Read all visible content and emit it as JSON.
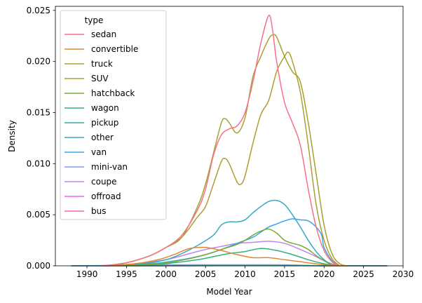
{
  "chart_data": {
    "type": "line",
    "title": "",
    "xlabel": "Model Year",
    "ylabel": "Density",
    "xlim": [
      1986,
      2030
    ],
    "ylim": [
      0,
      0.0254
    ],
    "xticks": [
      1990,
      1995,
      2000,
      2005,
      2010,
      2015,
      2020,
      2025,
      2030
    ],
    "yticks": [
      0.0,
      0.005,
      0.01,
      0.015,
      0.02,
      0.025
    ],
    "ytick_labels": [
      "0.000",
      "0.005",
      "0.010",
      "0.015",
      "0.020",
      "0.025"
    ],
    "grid": false,
    "legend": {
      "title": "type",
      "position": "top-left"
    },
    "series": [
      {
        "name": "sedan",
        "color": "#f77189",
        "points": [
          [
            1992,
            0
          ],
          [
            1995,
            0.0003
          ],
          [
            1998,
            0.001
          ],
          [
            2000,
            0.0018
          ],
          [
            2002,
            0.003
          ],
          [
            2004,
            0.0055
          ],
          [
            2005,
            0.0075
          ],
          [
            2006,
            0.0108
          ],
          [
            2007,
            0.0128
          ],
          [
            2008,
            0.0134
          ],
          [
            2009,
            0.0137
          ],
          [
            2010,
            0.015
          ],
          [
            2011,
            0.018
          ],
          [
            2012,
            0.0218
          ],
          [
            2013,
            0.0245
          ],
          [
            2013.5,
            0.023
          ],
          [
            2014,
            0.02
          ],
          [
            2015,
            0.016
          ],
          [
            2016,
            0.014
          ],
          [
            2017,
            0.0118
          ],
          [
            2018,
            0.0075
          ],
          [
            2019,
            0.0038
          ],
          [
            2020,
            0.0015
          ],
          [
            2021,
            0.0004
          ],
          [
            2022,
            0
          ]
        ]
      },
      {
        "name": "convertible",
        "color": "#dc8932",
        "points": [
          [
            1992,
            0
          ],
          [
            1996,
            0.0002
          ],
          [
            1999,
            0.0006
          ],
          [
            2001,
            0.0011
          ],
          [
            2003,
            0.0017
          ],
          [
            2005,
            0.0018
          ],
          [
            2007,
            0.0015
          ],
          [
            2009,
            0.0011
          ],
          [
            2011,
            0.0008
          ],
          [
            2013,
            0.0008
          ],
          [
            2015,
            0.0006
          ],
          [
            2017,
            0.0004
          ],
          [
            2019,
            0.0002
          ],
          [
            2021,
            5e-05
          ],
          [
            2023,
            0
          ]
        ]
      },
      {
        "name": "truck",
        "color": "#ae9d31",
        "points": [
          [
            1992,
            0
          ],
          [
            1995,
            0.0003
          ],
          [
            1998,
            0.001
          ],
          [
            2000,
            0.0018
          ],
          [
            2002,
            0.0028
          ],
          [
            2004,
            0.0048
          ],
          [
            2005,
            0.0058
          ],
          [
            2006,
            0.008
          ],
          [
            2007,
            0.0102
          ],
          [
            2007.5,
            0.0105
          ],
          [
            2008,
            0.01
          ],
          [
            2009,
            0.0082
          ],
          [
            2009.5,
            0.008
          ],
          [
            2010,
            0.0088
          ],
          [
            2011,
            0.012
          ],
          [
            2012,
            0.0148
          ],
          [
            2013,
            0.0162
          ],
          [
            2014,
            0.019
          ],
          [
            2015,
            0.0205
          ],
          [
            2015.5,
            0.0209
          ],
          [
            2016,
            0.02
          ],
          [
            2017,
            0.017
          ],
          [
            2018,
            0.0118
          ],
          [
            2019,
            0.006
          ],
          [
            2020,
            0.0025
          ],
          [
            2021,
            0.0007
          ],
          [
            2022,
            0
          ]
        ]
      },
      {
        "name": "SUV",
        "color": "#a5a22e",
        "points": [
          [
            1992,
            0
          ],
          [
            1995,
            0.0003
          ],
          [
            1998,
            0.001
          ],
          [
            2000,
            0.0018
          ],
          [
            2002,
            0.0028
          ],
          [
            2004,
            0.0058
          ],
          [
            2005,
            0.008
          ],
          [
            2006,
            0.011
          ],
          [
            2007,
            0.014
          ],
          [
            2007.5,
            0.0144
          ],
          [
            2008,
            0.014
          ],
          [
            2009,
            0.013
          ],
          [
            2010,
            0.0145
          ],
          [
            2011,
            0.0185
          ],
          [
            2012,
            0.0205
          ],
          [
            2013,
            0.0222
          ],
          [
            2013.5,
            0.0226
          ],
          [
            2014,
            0.0224
          ],
          [
            2015,
            0.0205
          ],
          [
            2016,
            0.019
          ],
          [
            2017,
            0.018
          ],
          [
            2018,
            0.014
          ],
          [
            2019,
            0.009
          ],
          [
            2020,
            0.004
          ],
          [
            2021,
            0.0012
          ],
          [
            2022,
            0.0002
          ],
          [
            2023,
            0
          ]
        ]
      },
      {
        "name": "hatchback",
        "color": "#77ab31",
        "points": [
          [
            1992,
            0
          ],
          [
            1997,
            0.0001
          ],
          [
            2000,
            0.0003
          ],
          [
            2003,
            0.0007
          ],
          [
            2005,
            0.0011
          ],
          [
            2007,
            0.0016
          ],
          [
            2009,
            0.0021
          ],
          [
            2010,
            0.0025
          ],
          [
            2011,
            0.003
          ],
          [
            2012,
            0.0034
          ],
          [
            2013,
            0.0036
          ],
          [
            2014,
            0.0032
          ],
          [
            2015,
            0.0025
          ],
          [
            2016,
            0.0022
          ],
          [
            2017,
            0.002
          ],
          [
            2018,
            0.0016
          ],
          [
            2019,
            0.001
          ],
          [
            2020,
            0.0005
          ],
          [
            2021,
            0.0001
          ],
          [
            2022,
            0
          ]
        ]
      },
      {
        "name": "wagon",
        "color": "#33b07a",
        "points": [
          [
            1992,
            0
          ],
          [
            1998,
            0.0001
          ],
          [
            2001,
            0.0003
          ],
          [
            2004,
            0.0006
          ],
          [
            2006,
            0.0009
          ],
          [
            2008,
            0.0012
          ],
          [
            2010,
            0.0014
          ],
          [
            2012,
            0.0017
          ],
          [
            2014,
            0.0015
          ],
          [
            2016,
            0.0011
          ],
          [
            2018,
            0.0006
          ],
          [
            2020,
            0.0002
          ],
          [
            2022,
            0
          ]
        ]
      },
      {
        "name": "pickup",
        "color": "#36ada4",
        "points": [
          [
            1988,
            0
          ],
          [
            2000,
            0
          ],
          [
            2010,
            2e-05
          ],
          [
            2020,
            1e-05
          ],
          [
            2028,
            0
          ]
        ]
      },
      {
        "name": "other",
        "color": "#38a9c5",
        "points": [
          [
            1992,
            0
          ],
          [
            1997,
            0.0002
          ],
          [
            2000,
            0.0006
          ],
          [
            2002,
            0.0012
          ],
          [
            2004,
            0.002
          ],
          [
            2006,
            0.003
          ],
          [
            2007,
            0.004
          ],
          [
            2008,
            0.0043
          ],
          [
            2009,
            0.0043
          ],
          [
            2010,
            0.0045
          ],
          [
            2011,
            0.0052
          ],
          [
            2012,
            0.0058
          ],
          [
            2013,
            0.0063
          ],
          [
            2014,
            0.0064
          ],
          [
            2015,
            0.006
          ],
          [
            2016,
            0.005
          ],
          [
            2017,
            0.0038
          ],
          [
            2018,
            0.0025
          ],
          [
            2019,
            0.0014
          ],
          [
            2020,
            0.0006
          ],
          [
            2021,
            0.0001
          ],
          [
            2022,
            0
          ]
        ]
      },
      {
        "name": "van",
        "color": "#3ba3ec",
        "points": [
          [
            1992,
            0
          ],
          [
            1998,
            0.0002
          ],
          [
            2002,
            0.0006
          ],
          [
            2005,
            0.0011
          ],
          [
            2007,
            0.0016
          ],
          [
            2009,
            0.0022
          ],
          [
            2011,
            0.0028
          ],
          [
            2012,
            0.0033
          ],
          [
            2013,
            0.0038
          ],
          [
            2014,
            0.0041
          ],
          [
            2015,
            0.0044
          ],
          [
            2016,
            0.0046
          ],
          [
            2017,
            0.0045
          ],
          [
            2018,
            0.0044
          ],
          [
            2019,
            0.0038
          ],
          [
            2019.7,
            0.003
          ],
          [
            2020,
            0.0018
          ],
          [
            2021,
            0.0005
          ],
          [
            2022,
            0
          ]
        ]
      },
      {
        "name": "mini-van",
        "color": "#8197f4",
        "points": [
          [
            1988,
            0
          ],
          [
            2000,
            0.0001
          ],
          [
            2010,
            0.0001
          ],
          [
            2015,
            0.0001
          ],
          [
            2020,
            0
          ],
          [
            2028,
            0
          ]
        ]
      },
      {
        "name": "coupe",
        "color": "#c381f4",
        "points": [
          [
            1992,
            0
          ],
          [
            1996,
            0.0002
          ],
          [
            2000,
            0.0006
          ],
          [
            2003,
            0.0012
          ],
          [
            2005,
            0.0016
          ],
          [
            2007,
            0.0019
          ],
          [
            2009,
            0.0022
          ],
          [
            2011,
            0.0023
          ],
          [
            2013,
            0.0024
          ],
          [
            2015,
            0.0022
          ],
          [
            2017,
            0.0016
          ],
          [
            2019,
            0.0009
          ],
          [
            2020,
            0.0005
          ],
          [
            2021,
            0.0002
          ],
          [
            2022,
            0
          ]
        ]
      },
      {
        "name": "offroad",
        "color": "#f45deb",
        "points": [
          [
            1988,
            0
          ],
          [
            2000,
            3e-05
          ],
          [
            2010,
            4e-05
          ],
          [
            2020,
            2e-05
          ],
          [
            2028,
            0
          ]
        ]
      },
      {
        "name": "bus",
        "color": "#f565b4",
        "points": [
          [
            1988,
            0
          ],
          [
            2000,
            2e-05
          ],
          [
            2010,
            3e-05
          ],
          [
            2020,
            1e-05
          ],
          [
            2028,
            0
          ]
        ]
      }
    ]
  }
}
